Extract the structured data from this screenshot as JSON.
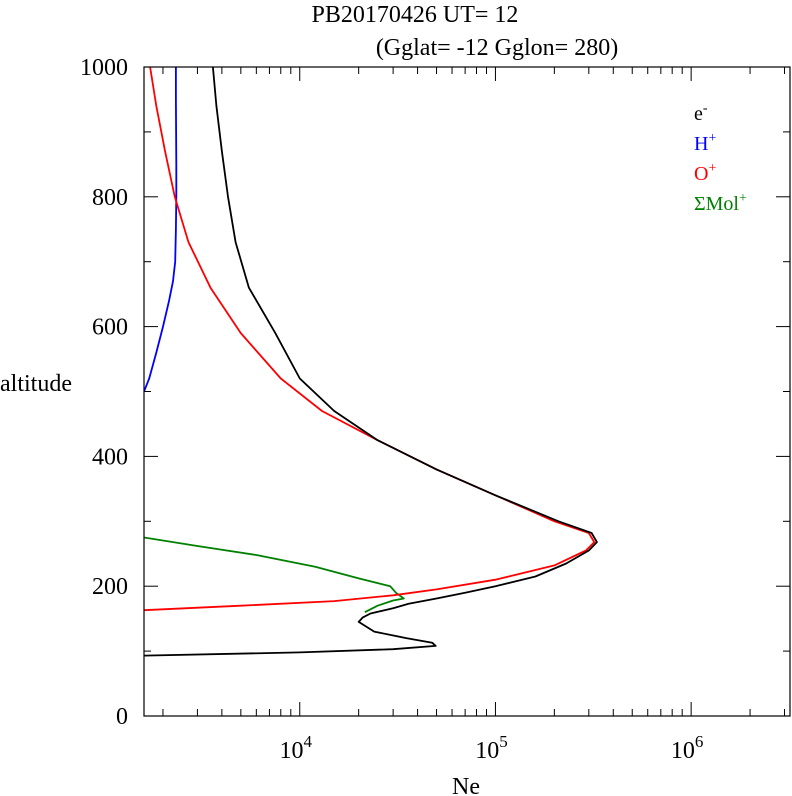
{
  "chart_data": {
    "type": "line",
    "title": "PB20170426   UT=  12",
    "subtitle": "(Gglat= -12   Gglon=  280)",
    "xlabel": "Ne",
    "ylabel": "altitude",
    "x_scale": "log",
    "xlim": [
      1600,
      3200000
    ],
    "ylim": [
      0,
      1000
    ],
    "y_ticks": [
      "0",
      "200",
      "400",
      "600",
      "800",
      "1000"
    ],
    "x_ticks": [
      {
        "value": 10000,
        "base": "10",
        "exp": "4"
      },
      {
        "value": 100000,
        "base": "10",
        "exp": "5"
      },
      {
        "value": 1000000,
        "base": "10",
        "exp": "6"
      }
    ],
    "grid": false,
    "legend_position": "top-right",
    "legend": [
      {
        "base": "e",
        "sup": "-",
        "color": "#000000"
      },
      {
        "base": "H",
        "sup": "+",
        "color": "#0000ff"
      },
      {
        "base": "O",
        "sup": "+",
        "color": "#ff0000"
      },
      {
        "base": "ΣMol",
        "sup": "+",
        "color": "#008000"
      }
    ],
    "series": [
      {
        "name": "H+",
        "color": "#0000ff",
        "points": [
          [
            1600,
            500
          ],
          [
            1700,
            520
          ],
          [
            1850,
            560
          ],
          [
            2000,
            600
          ],
          [
            2150,
            640
          ],
          [
            2250,
            670
          ],
          [
            2310,
            700
          ],
          [
            2330,
            750
          ],
          [
            2340,
            800
          ],
          [
            2340,
            850
          ],
          [
            2335,
            900
          ],
          [
            2330,
            950
          ],
          [
            2330,
            1000
          ]
        ]
      },
      {
        "name": "ΣMol+",
        "color": "#008000",
        "points": [
          [
            1600,
            275
          ],
          [
            3000,
            262
          ],
          [
            6000,
            248
          ],
          [
            12000,
            230
          ],
          [
            20000,
            212
          ],
          [
            29000,
            200
          ],
          [
            31000,
            190
          ],
          [
            34000,
            181
          ],
          [
            30000,
            178
          ],
          [
            25000,
            170
          ],
          [
            21500,
            160
          ]
        ]
      },
      {
        "name": "O+",
        "color": "#ff0000",
        "points": [
          [
            1600,
            163
          ],
          [
            5000,
            170
          ],
          [
            15000,
            177
          ],
          [
            30000,
            186
          ],
          [
            50000,
            195
          ],
          [
            100000,
            210
          ],
          [
            200000,
            232
          ],
          [
            290000,
            255
          ],
          [
            320000,
            268
          ],
          [
            300000,
            282
          ],
          [
            200000,
            300
          ],
          [
            100000,
            340
          ],
          [
            50000,
            380
          ],
          [
            25000,
            425
          ],
          [
            13000,
            470
          ],
          [
            8000,
            520
          ],
          [
            5000,
            590
          ],
          [
            3500,
            660
          ],
          [
            2700,
            730
          ],
          [
            2300,
            800
          ],
          [
            2050,
            870
          ],
          [
            1850,
            940
          ],
          [
            1720,
            1000
          ]
        ]
      },
      {
        "name": "e-",
        "color": "#000000",
        "points": [
          [
            1600,
            93
          ],
          [
            10000,
            98
          ],
          [
            30000,
            103
          ],
          [
            49500,
            108
          ],
          [
            47500,
            113
          ],
          [
            35000,
            120
          ],
          [
            24000,
            130
          ],
          [
            20000,
            145
          ],
          [
            21000,
            152
          ],
          [
            23000,
            158
          ],
          [
            30000,
            166
          ],
          [
            36000,
            173
          ],
          [
            50000,
            181
          ],
          [
            70000,
            190
          ],
          [
            100000,
            200
          ],
          [
            160000,
            215
          ],
          [
            230000,
            235
          ],
          [
            300000,
            255
          ],
          [
            330000,
            268
          ],
          [
            310000,
            282
          ],
          [
            210000,
            300
          ],
          [
            100000,
            340
          ],
          [
            50000,
            380
          ],
          [
            25000,
            425
          ],
          [
            15000,
            470
          ],
          [
            10000,
            520
          ],
          [
            7500,
            590
          ],
          [
            5500,
            660
          ],
          [
            4700,
            730
          ],
          [
            4300,
            800
          ],
          [
            4000,
            870
          ],
          [
            3750,
            940
          ],
          [
            3600,
            1000
          ]
        ]
      }
    ]
  }
}
